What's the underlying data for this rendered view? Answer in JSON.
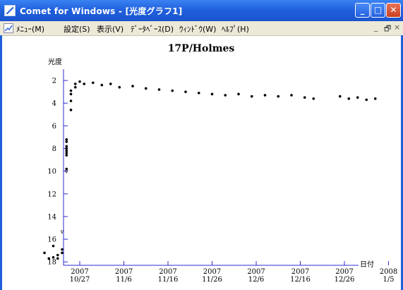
{
  "window": {
    "title": "Comet for Windows - [光度グラフ1]",
    "minimize": "_",
    "maximize": "□",
    "close": "✕"
  },
  "menu": {
    "items": [
      "ﾒﾆｭｰ(M)",
      "設定(S)",
      "表示(V)",
      "ﾃﾞｰﾀﾍﾞｰｽ(D)",
      "ｳｨﾝﾄﾞｳ(W)",
      "ﾍﾙﾌﾟ(H)"
    ],
    "mdi_buttons": [
      "_",
      "🗗",
      "×"
    ]
  },
  "chart_data": {
    "type": "scatter",
    "title": "17P/Holmes",
    "ylabel": "光度",
    "xlabel": "日付",
    "ylim": [
      18.3,
      1.0
    ],
    "y_inverted": true,
    "y_ticks": [
      2,
      4,
      6,
      8,
      10,
      12,
      14,
      16,
      18
    ],
    "x_ticks": [
      {
        "top": "2007",
        "bottom": "10/27"
      },
      {
        "top": "2007",
        "bottom": "11/6"
      },
      {
        "top": "2007",
        "bottom": "11/16"
      },
      {
        "top": "2007",
        "bottom": "11/26"
      },
      {
        "top": "2007",
        "bottom": "12/6"
      },
      {
        "top": "2007",
        "bottom": "12/16"
      },
      {
        "top": "2007",
        "bottom": "12/26"
      },
      {
        "top": "2008",
        "bottom": "1/5"
      }
    ],
    "upper_limit_marks": [
      {
        "date": "2007-10-23",
        "mag": 15.3,
        "label": "v"
      },
      {
        "date": "2007-10-24",
        "mag": 10.0,
        "label": "v"
      }
    ],
    "series": [
      {
        "points": [
          [
            "2007-10-19",
            17.2
          ],
          [
            "2007-10-20",
            17.7
          ],
          [
            "2007-10-21",
            17.6
          ],
          [
            "2007-10-21",
            16.6
          ],
          [
            "2007-10-22",
            17.4
          ],
          [
            "2007-10-23",
            16.9
          ],
          [
            "2007-10-23",
            17.2
          ],
          [
            "2007-10-22",
            17.7
          ],
          [
            "2007-10-24",
            8.6
          ],
          [
            "2007-10-24",
            8.2
          ],
          [
            "2007-10-24",
            7.8
          ],
          [
            "2007-10-24",
            7.4
          ],
          [
            "2007-10-24",
            7.2
          ],
          [
            "2007-10-24",
            8.0
          ],
          [
            "2007-10-24",
            8.4
          ],
          [
            "2007-10-24",
            9.8
          ],
          [
            "2007-10-25",
            4.6
          ],
          [
            "2007-10-25",
            3.8
          ],
          [
            "2007-10-25",
            3.2
          ],
          [
            "2007-10-25",
            2.9
          ],
          [
            "2007-10-26",
            2.6
          ],
          [
            "2007-10-26",
            2.3
          ],
          [
            "2007-10-27",
            2.1
          ],
          [
            "2007-10-28",
            2.3
          ],
          [
            "2007-10-30",
            2.2
          ],
          [
            "2007-11-01",
            2.4
          ],
          [
            "2007-11-03",
            2.3
          ],
          [
            "2007-11-05",
            2.6
          ],
          [
            "2007-11-08",
            2.5
          ],
          [
            "2007-11-11",
            2.7
          ],
          [
            "2007-11-14",
            2.8
          ],
          [
            "2007-11-17",
            2.9
          ],
          [
            "2007-11-20",
            3.0
          ],
          [
            "2007-11-23",
            3.1
          ],
          [
            "2007-11-26",
            3.2
          ],
          [
            "2007-11-29",
            3.3
          ],
          [
            "2007-12-02",
            3.2
          ],
          [
            "2007-12-05",
            3.4
          ],
          [
            "2007-12-08",
            3.3
          ],
          [
            "2007-12-11",
            3.4
          ],
          [
            "2007-12-14",
            3.3
          ],
          [
            "2007-12-17",
            3.5
          ],
          [
            "2007-12-19",
            3.6
          ],
          [
            "2007-12-25",
            3.4
          ],
          [
            "2007-12-27",
            3.6
          ],
          [
            "2007-12-29",
            3.5
          ],
          [
            "2007-12-31",
            3.7
          ],
          [
            "2008-01-02",
            3.6
          ]
        ]
      }
    ]
  }
}
